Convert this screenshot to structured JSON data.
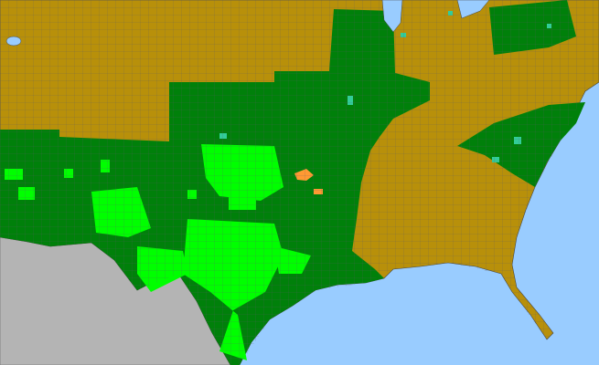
{
  "map": {
    "colors": {
      "water": "#99ccff",
      "foreign_land": "#b4b4b4",
      "category_olive": "#b8900a",
      "category_dark_green": "#00800a",
      "category_bright_green": "#00ff00",
      "category_light_green": "#33ff66",
      "category_teal": "#33cc99",
      "category_orange": "#ff9933",
      "county_lines": "#5a5a6a"
    }
  }
}
